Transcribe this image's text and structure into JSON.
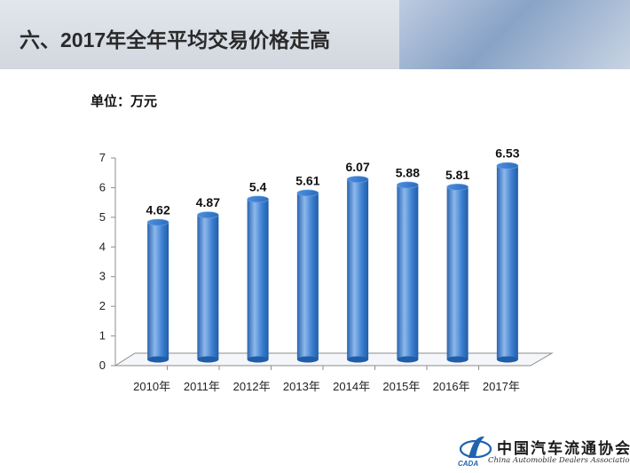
{
  "slide": {
    "title": "六、2017年全年平均交易价格走高",
    "unit": "单位：万元"
  },
  "logo": {
    "name_cn": "中国汽车流通协会",
    "name_en": "China Automobile Dealers Association",
    "abbr": "CADA"
  },
  "colors": {
    "bar": "#3d7fd0",
    "bar_highlight": "#8db8ec",
    "bar_shadow": "#1f5da8",
    "axis": "#8c8c8c"
  },
  "chart_data": {
    "type": "bar",
    "categories": [
      "2010年",
      "2011年",
      "2012年",
      "2013年",
      "2014年",
      "2015年",
      "2016年",
      "2017年"
    ],
    "values": [
      4.62,
      4.87,
      5.4,
      5.61,
      6.07,
      5.88,
      5.81,
      6.53
    ],
    "data_labels": [
      "4.62",
      "4.87",
      "5.4",
      "5.61",
      "6.07",
      "5.88",
      "5.81",
      "6.53"
    ],
    "yticks": [
      "0",
      "1",
      "2",
      "3",
      "4",
      "5",
      "6",
      "7"
    ],
    "ylim": [
      0,
      7
    ],
    "title": "",
    "xlabel": "",
    "ylabel": "",
    "grid": false,
    "legend": "none",
    "style": "3d-cylinder"
  }
}
